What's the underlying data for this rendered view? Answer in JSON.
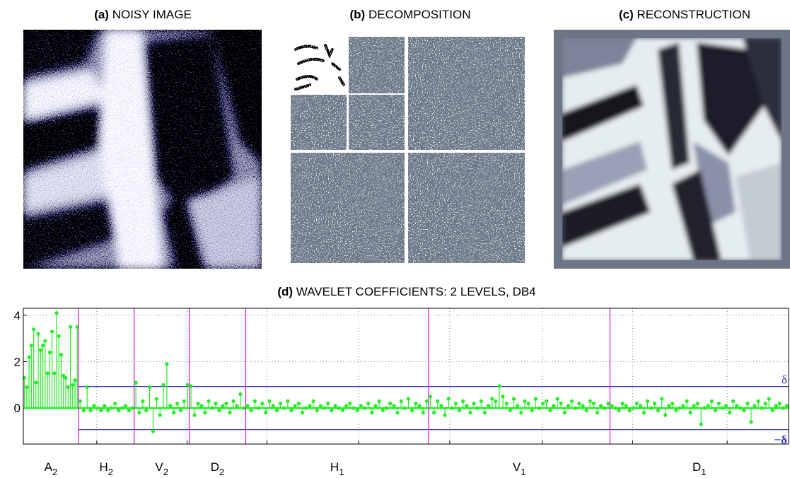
{
  "panels": [
    {
      "letter": "(a)",
      "title": "NOISY IMAGE"
    },
    {
      "letter": "(b)",
      "title": "DECOMPOSITION"
    },
    {
      "letter": "(c)",
      "title": "RECONSTRUCTION"
    }
  ],
  "chart_data": {
    "type": "stem",
    "letter": "(d)",
    "title": "WAVELET COEFFICIENTS: 2 LEVELS, DB4",
    "color": "#22ee22",
    "boundary_color": "#e020e0",
    "threshold_color": "#3535c8",
    "xlim": [
      0,
      1084
    ],
    "xticks": [
      104,
      232,
      345,
      475,
      604,
      735,
      863,
      997
    ],
    "ylim": [
      -1.55,
      4.3
    ],
    "yticks": [
      0,
      2,
      4
    ],
    "grid": true,
    "threshold": 0.93,
    "threshold_label": "δ",
    "neg_threshold_label": "−δ",
    "bands": [
      {
        "label": "A",
        "sub": "2",
        "range": [
          0,
          78
        ],
        "values": [
          1.3,
          0.9,
          2.2,
          2.7,
          3.4,
          1.1,
          3.2,
          2.5,
          2.7,
          2.9,
          1.5,
          2.4,
          3.3,
          1.5,
          4.1,
          3.1,
          2.3,
          1.4,
          1.3,
          0.9,
          3.5,
          1.0,
          1.2,
          3.5
        ]
      },
      {
        "label": "H",
        "sub": "2",
        "range": [
          78,
          157
        ],
        "values": [
          0.3,
          -0.1,
          0.9,
          -0.1,
          0.1,
          0.0,
          -0.1,
          0.1,
          -0.1,
          0.0,
          0.2,
          -0.1,
          0.0,
          0.1,
          -0.1,
          0.0
        ]
      },
      {
        "label": "V",
        "sub": "2",
        "range": [
          157,
          235
        ],
        "values": [
          1.1,
          -0.2,
          0.3,
          -0.1,
          0.9,
          -1.0,
          0.4,
          -0.3,
          1.0,
          1.9,
          0.1,
          -0.2,
          0.2,
          -0.1,
          0.3,
          1.0
        ]
      },
      {
        "label": "D",
        "sub": "2",
        "range": [
          235,
          315
        ],
        "values": [
          0.95,
          -0.3,
          0.2,
          0.1,
          -0.2,
          0.3,
          0.0,
          0.2,
          -0.1,
          0.1,
          0.2,
          -0.2,
          0.3,
          0.1,
          0.6,
          0.0
        ]
      },
      {
        "label": "H",
        "sub": "1",
        "range": [
          315,
          574
        ],
        "values": [
          0.1,
          -0.1,
          0.3,
          0.0,
          0.2,
          -0.2,
          0.3,
          0.1,
          -0.1,
          0.2,
          0.0,
          0.3,
          -0.1,
          0.1,
          0.2,
          -0.2,
          0.0,
          0.1,
          0.3,
          -0.1,
          0.1,
          0.0,
          0.2,
          -0.1,
          0.1,
          0.0,
          -0.1,
          0.1,
          0.2,
          0.0,
          -0.1,
          0.1,
          0.0,
          0.2,
          -0.2,
          0.1,
          0.3,
          -0.1,
          0.0,
          0.2,
          0.1,
          -0.2,
          0.3,
          0.0,
          0.4,
          -0.1,
          0.2,
          0.1,
          -0.2,
          0.3
        ]
      },
      {
        "label": "V",
        "sub": "1",
        "range": [
          574,
          831
        ],
        "values": [
          0.5,
          -0.2,
          0.3,
          0.1,
          -0.3,
          0.4,
          0.0,
          0.2,
          -0.1,
          0.3,
          0.1,
          -0.2,
          0.2,
          0.0,
          0.3,
          -0.2,
          0.1,
          0.4,
          0.3,
          0.95,
          0.5,
          0.2,
          -0.1,
          0.4,
          0.1,
          -0.2,
          0.3,
          0.2,
          -0.1,
          0.4,
          0.0,
          0.2,
          0.3,
          -0.1,
          0.1,
          0.4,
          0.2,
          -0.2,
          0.1,
          0.3,
          0.0,
          0.2,
          0.1,
          -0.1,
          0.3,
          0.2,
          -0.2,
          0.1,
          0.0,
          0.2
        ]
      },
      {
        "label": "D",
        "sub": "1",
        "range": [
          831,
          1084
        ],
        "values": [
          0.1,
          0.0,
          -0.1,
          0.2,
          0.1,
          -0.1,
          0.0,
          0.2,
          0.1,
          -0.2,
          0.3,
          0.0,
          0.2,
          -0.1,
          0.4,
          -0.3,
          0.1,
          0.2,
          -0.1,
          0.0,
          0.1,
          0.3,
          -0.2,
          0.1,
          0.2,
          -0.7,
          0.0,
          0.1,
          0.3,
          -0.1,
          0.2,
          0.0,
          0.1,
          -0.2,
          0.3,
          0.1,
          0.0,
          -0.1,
          0.2,
          -0.6,
          0.1,
          0.3,
          0.0,
          0.2,
          0.4,
          -0.1,
          0.1,
          0.2,
          0.0,
          0.1
        ]
      }
    ]
  }
}
